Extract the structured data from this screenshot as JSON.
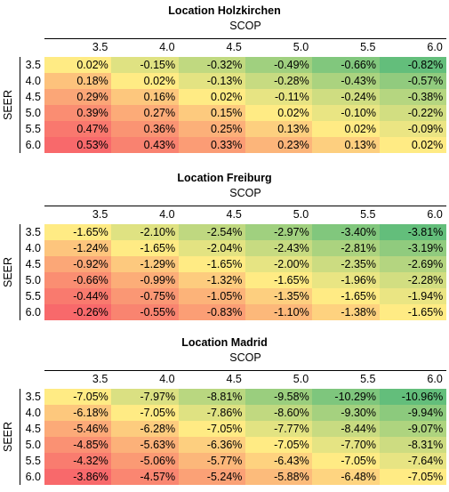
{
  "chart_data": [
    {
      "type": "heatmap",
      "title": "Location Holzkirchen",
      "xlabel": "SCOP",
      "ylabel": "SEER",
      "x_categories": [
        "3.5",
        "4.0",
        "4.5",
        "5.0",
        "5.5",
        "6.0"
      ],
      "y_categories": [
        "3.5",
        "4.0",
        "4.5",
        "5.0",
        "5.5",
        "6.0"
      ],
      "values": [
        [
          "0.02%",
          "-0.15%",
          "-0.32%",
          "-0.49%",
          "-0.66%",
          "-0.82%"
        ],
        [
          "0.18%",
          "0.02%",
          "-0.13%",
          "-0.28%",
          "-0.43%",
          "-0.57%"
        ],
        [
          "0.29%",
          "0.16%",
          "0.02%",
          "-0.11%",
          "-0.24%",
          "-0.38%"
        ],
        [
          "0.39%",
          "0.27%",
          "0.15%",
          "0.02%",
          "-0.10%",
          "-0.22%"
        ],
        [
          "0.47%",
          "0.36%",
          "0.25%",
          "0.13%",
          "0.02%",
          "-0.09%"
        ],
        [
          "0.53%",
          "0.43%",
          "0.33%",
          "0.23%",
          "0.13%",
          "0.02%"
        ]
      ]
    },
    {
      "type": "heatmap",
      "title": "Location Freiburg",
      "xlabel": "SCOP",
      "ylabel": "SEER",
      "x_categories": [
        "3.5",
        "4.0",
        "4.5",
        "5.0",
        "5.5",
        "6.0"
      ],
      "y_categories": [
        "3.5",
        "4.0",
        "4.5",
        "5.0",
        "5.5",
        "6.0"
      ],
      "values": [
        [
          "-1.65%",
          "-2.10%",
          "-2.54%",
          "-2.97%",
          "-3.40%",
          "-3.81%"
        ],
        [
          "-1.24%",
          "-1.65%",
          "-2.04%",
          "-2.43%",
          "-2.81%",
          "-3.19%"
        ],
        [
          "-0.92%",
          "-1.29%",
          "-1.65%",
          "-2.00%",
          "-2.35%",
          "-2.69%"
        ],
        [
          "-0.66%",
          "-0.99%",
          "-1.32%",
          "-1.65%",
          "-1.96%",
          "-2.28%"
        ],
        [
          "-0.44%",
          "-0.75%",
          "-1.05%",
          "-1.35%",
          "-1.65%",
          "-1.94%"
        ],
        [
          "-0.26%",
          "-0.55%",
          "-0.83%",
          "-1.10%",
          "-1.38%",
          "-1.65%"
        ]
      ]
    },
    {
      "type": "heatmap",
      "title": "Location Madrid",
      "xlabel": "SCOP",
      "ylabel": "SEER",
      "x_categories": [
        "3.5",
        "4.0",
        "4.5",
        "5.0",
        "5.5",
        "6.0"
      ],
      "y_categories": [
        "3.5",
        "4.0",
        "4.5",
        "5.0",
        "5.5",
        "6.0"
      ],
      "values": [
        [
          "-7.05%",
          "-7.97%",
          "-8.81%",
          "-9.58%",
          "-10.29%",
          "-10.96%"
        ],
        [
          "-6.18%",
          "-7.05%",
          "-7.86%",
          "-8.60%",
          "-9.30%",
          "-9.94%"
        ],
        [
          "-5.46%",
          "-6.28%",
          "-7.05%",
          "-7.77%",
          "-8.44%",
          "-9.07%"
        ],
        [
          "-4.85%",
          "-5.63%",
          "-6.36%",
          "-7.05%",
          "-7.70%",
          "-8.31%"
        ],
        [
          "-4.32%",
          "-5.06%",
          "-5.77%",
          "-6.43%",
          "-7.05%",
          "-7.64%"
        ],
        [
          "-3.86%",
          "-4.57%",
          "-5.24%",
          "-5.88%",
          "-6.48%",
          "-7.05%"
        ]
      ]
    }
  ],
  "color_scale": {
    "low": "#63be7b",
    "mid": "#ffeb84",
    "high": "#f8696b"
  }
}
